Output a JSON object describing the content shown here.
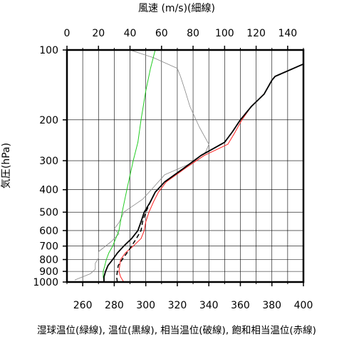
{
  "chart_data": {
    "type": "line",
    "title": "",
    "x_bottom": {
      "label": "",
      "range": [
        250,
        400
      ],
      "ticks": [
        260,
        280,
        300,
        320,
        340,
        360,
        380,
        400
      ]
    },
    "x_top": {
      "label": "風速 (m/s)(細線)",
      "range": [
        0,
        150
      ],
      "ticks": [
        0,
        20,
        40,
        60,
        80,
        100,
        120,
        140
      ]
    },
    "y": {
      "label": "気圧(hPa)",
      "scale": "log",
      "inverted": true,
      "range": [
        100,
        1000
      ],
      "ticks": [
        100,
        200,
        300,
        400,
        500,
        600,
        700,
        800,
        900,
        1000
      ]
    },
    "caption": "湿球温位(緑線), 温位(黒線), 相当温位(破線), 飽和相当温位(赤線)",
    "grid": true,
    "colors": {
      "wet_bulb": "#22cc22",
      "potential": "#000000",
      "equivalent": "#000000",
      "saturated": "#ff2020",
      "wind": "#888888"
    },
    "series": [
      {
        "name": "湿球温位",
        "axis": "bottom",
        "style": "solid",
        "points": [
          [
            273.5,
            1000
          ],
          [
            273,
            950
          ],
          [
            273,
            900
          ],
          [
            274,
            850
          ],
          [
            275,
            800
          ],
          [
            276.5,
            750
          ],
          [
            279,
            700
          ],
          [
            283,
            600
          ],
          [
            285,
            500
          ],
          [
            288,
            400
          ],
          [
            292,
            300
          ],
          [
            295,
            250
          ],
          [
            297,
            200
          ],
          [
            300,
            150
          ],
          [
            303,
            120
          ],
          [
            306,
            100
          ]
        ]
      },
      {
        "name": "温位",
        "axis": "bottom",
        "style": "solid",
        "points": [
          [
            273.5,
            1000
          ],
          [
            273.5,
            950
          ],
          [
            274.5,
            900
          ],
          [
            276,
            850
          ],
          [
            279,
            800
          ],
          [
            282,
            750
          ],
          [
            286,
            700
          ],
          [
            291,
            650
          ],
          [
            295,
            600
          ],
          [
            297,
            550
          ],
          [
            299,
            500
          ],
          [
            303,
            450
          ],
          [
            306,
            410
          ],
          [
            312,
            370
          ],
          [
            325,
            320
          ],
          [
            335,
            285
          ],
          [
            350,
            250
          ],
          [
            355,
            225
          ],
          [
            360,
            200
          ],
          [
            367,
            175
          ],
          [
            375,
            155
          ],
          [
            380,
            135
          ],
          [
            382,
            130
          ],
          [
            400,
            115
          ]
        ]
      },
      {
        "name": "相当温位",
        "axis": "bottom",
        "style": "dashed",
        "points": [
          [
            282,
            1000
          ],
          [
            281.5,
            950
          ],
          [
            282,
            900
          ],
          [
            282.5,
            850
          ],
          [
            285,
            800
          ],
          [
            288,
            750
          ],
          [
            291,
            700
          ],
          [
            294,
            650
          ],
          [
            297,
            600
          ],
          [
            298,
            550
          ],
          [
            300,
            500
          ],
          [
            303,
            450
          ],
          [
            306,
            410
          ],
          [
            312,
            370
          ],
          [
            325,
            320
          ],
          [
            335,
            285
          ],
          [
            350,
            250
          ],
          [
            355,
            225
          ],
          [
            360,
            200
          ],
          [
            367,
            175
          ],
          [
            375,
            155
          ],
          [
            380,
            135
          ],
          [
            382,
            130
          ],
          [
            400,
            115
          ]
        ]
      },
      {
        "name": "飽和相当温位",
        "axis": "bottom",
        "style": "solid",
        "points": [
          [
            286,
            1000
          ],
          [
            284,
            950
          ],
          [
            283,
            900
          ],
          [
            283.5,
            850
          ],
          [
            284,
            800
          ],
          [
            287,
            750
          ],
          [
            292,
            700
          ],
          [
            297,
            650
          ],
          [
            299,
            600
          ],
          [
            300,
            550
          ],
          [
            302,
            500
          ],
          [
            305,
            450
          ],
          [
            308,
            410
          ],
          [
            313,
            370
          ],
          [
            326,
            320
          ],
          [
            337,
            285
          ],
          [
            352,
            255
          ],
          [
            356,
            230
          ],
          [
            361,
            200
          ],
          [
            367,
            175
          ],
          [
            375,
            155
          ],
          [
            380,
            135
          ],
          [
            382,
            130
          ],
          [
            400,
            115
          ]
        ]
      },
      {
        "name": "風速",
        "axis": "top",
        "style": "solid",
        "points": [
          [
            5,
            980
          ],
          [
            15,
            920
          ],
          [
            18,
            880
          ],
          [
            18,
            830
          ],
          [
            20,
            790
          ],
          [
            20,
            740
          ],
          [
            28,
            670
          ],
          [
            33,
            620
          ],
          [
            30,
            590
          ],
          [
            33,
            555
          ],
          [
            35,
            520
          ],
          [
            36,
            500
          ],
          [
            48,
            440
          ],
          [
            55,
            390
          ],
          [
            62,
            345
          ],
          [
            80,
            305
          ],
          [
            88,
            275
          ],
          [
            90,
            255
          ],
          [
            84,
            215
          ],
          [
            78,
            175
          ],
          [
            75,
            150
          ],
          [
            72,
            130
          ],
          [
            70,
            120
          ],
          [
            55,
            108
          ],
          [
            40,
            100
          ]
        ]
      }
    ]
  }
}
